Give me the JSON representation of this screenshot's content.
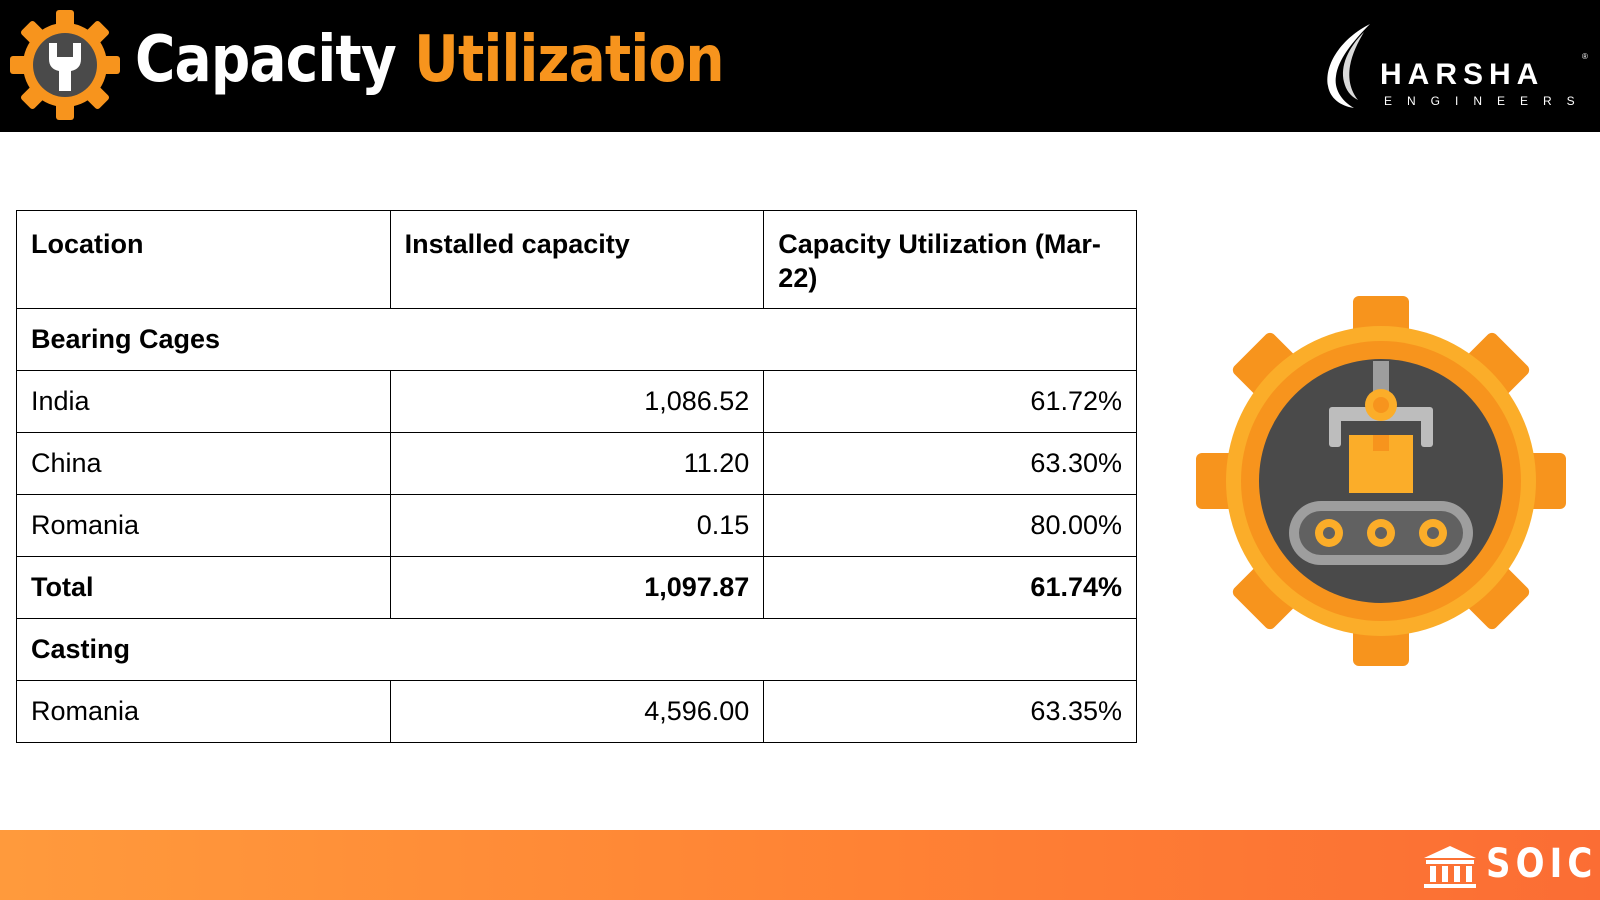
{
  "header": {
    "title_word1": "Capacity",
    "title_word2": "Utilization",
    "brand_name": "HARSHA",
    "brand_sub": "ENGINEERS",
    "brand_reg": "®"
  },
  "table": {
    "headers": [
      "Location",
      "Installed capacity",
      "Capacity Utilization (Mar-22)"
    ],
    "sections": [
      {
        "name": "Bearing Cages",
        "rows": [
          {
            "location": "India",
            "installed": "1,086.52",
            "utilization": "61.72%"
          },
          {
            "location": "China",
            "installed": "11.20",
            "utilization": "63.30%"
          },
          {
            "location": "Romania",
            "installed": "0.15",
            "utilization": "80.00%"
          }
        ],
        "total": {
          "location": "Total",
          "installed": "1,097.87",
          "utilization": "61.74%"
        }
      },
      {
        "name": "Casting",
        "rows": [
          {
            "location": "Romania",
            "installed": "4,596.00",
            "utilization": "63.35%"
          }
        ]
      }
    ]
  },
  "footer": {
    "logo_text": "SOIC"
  },
  "colors": {
    "accent_orange": "#f7941d",
    "header_bg": "#000000",
    "footer_orange": "#ff8234",
    "gear_dark": "#4a4a4a"
  },
  "icons": [
    "wrench-gear-icon",
    "harsha-swoosh-logo",
    "factory-robot-gear-icon",
    "soic-building-icon"
  ]
}
